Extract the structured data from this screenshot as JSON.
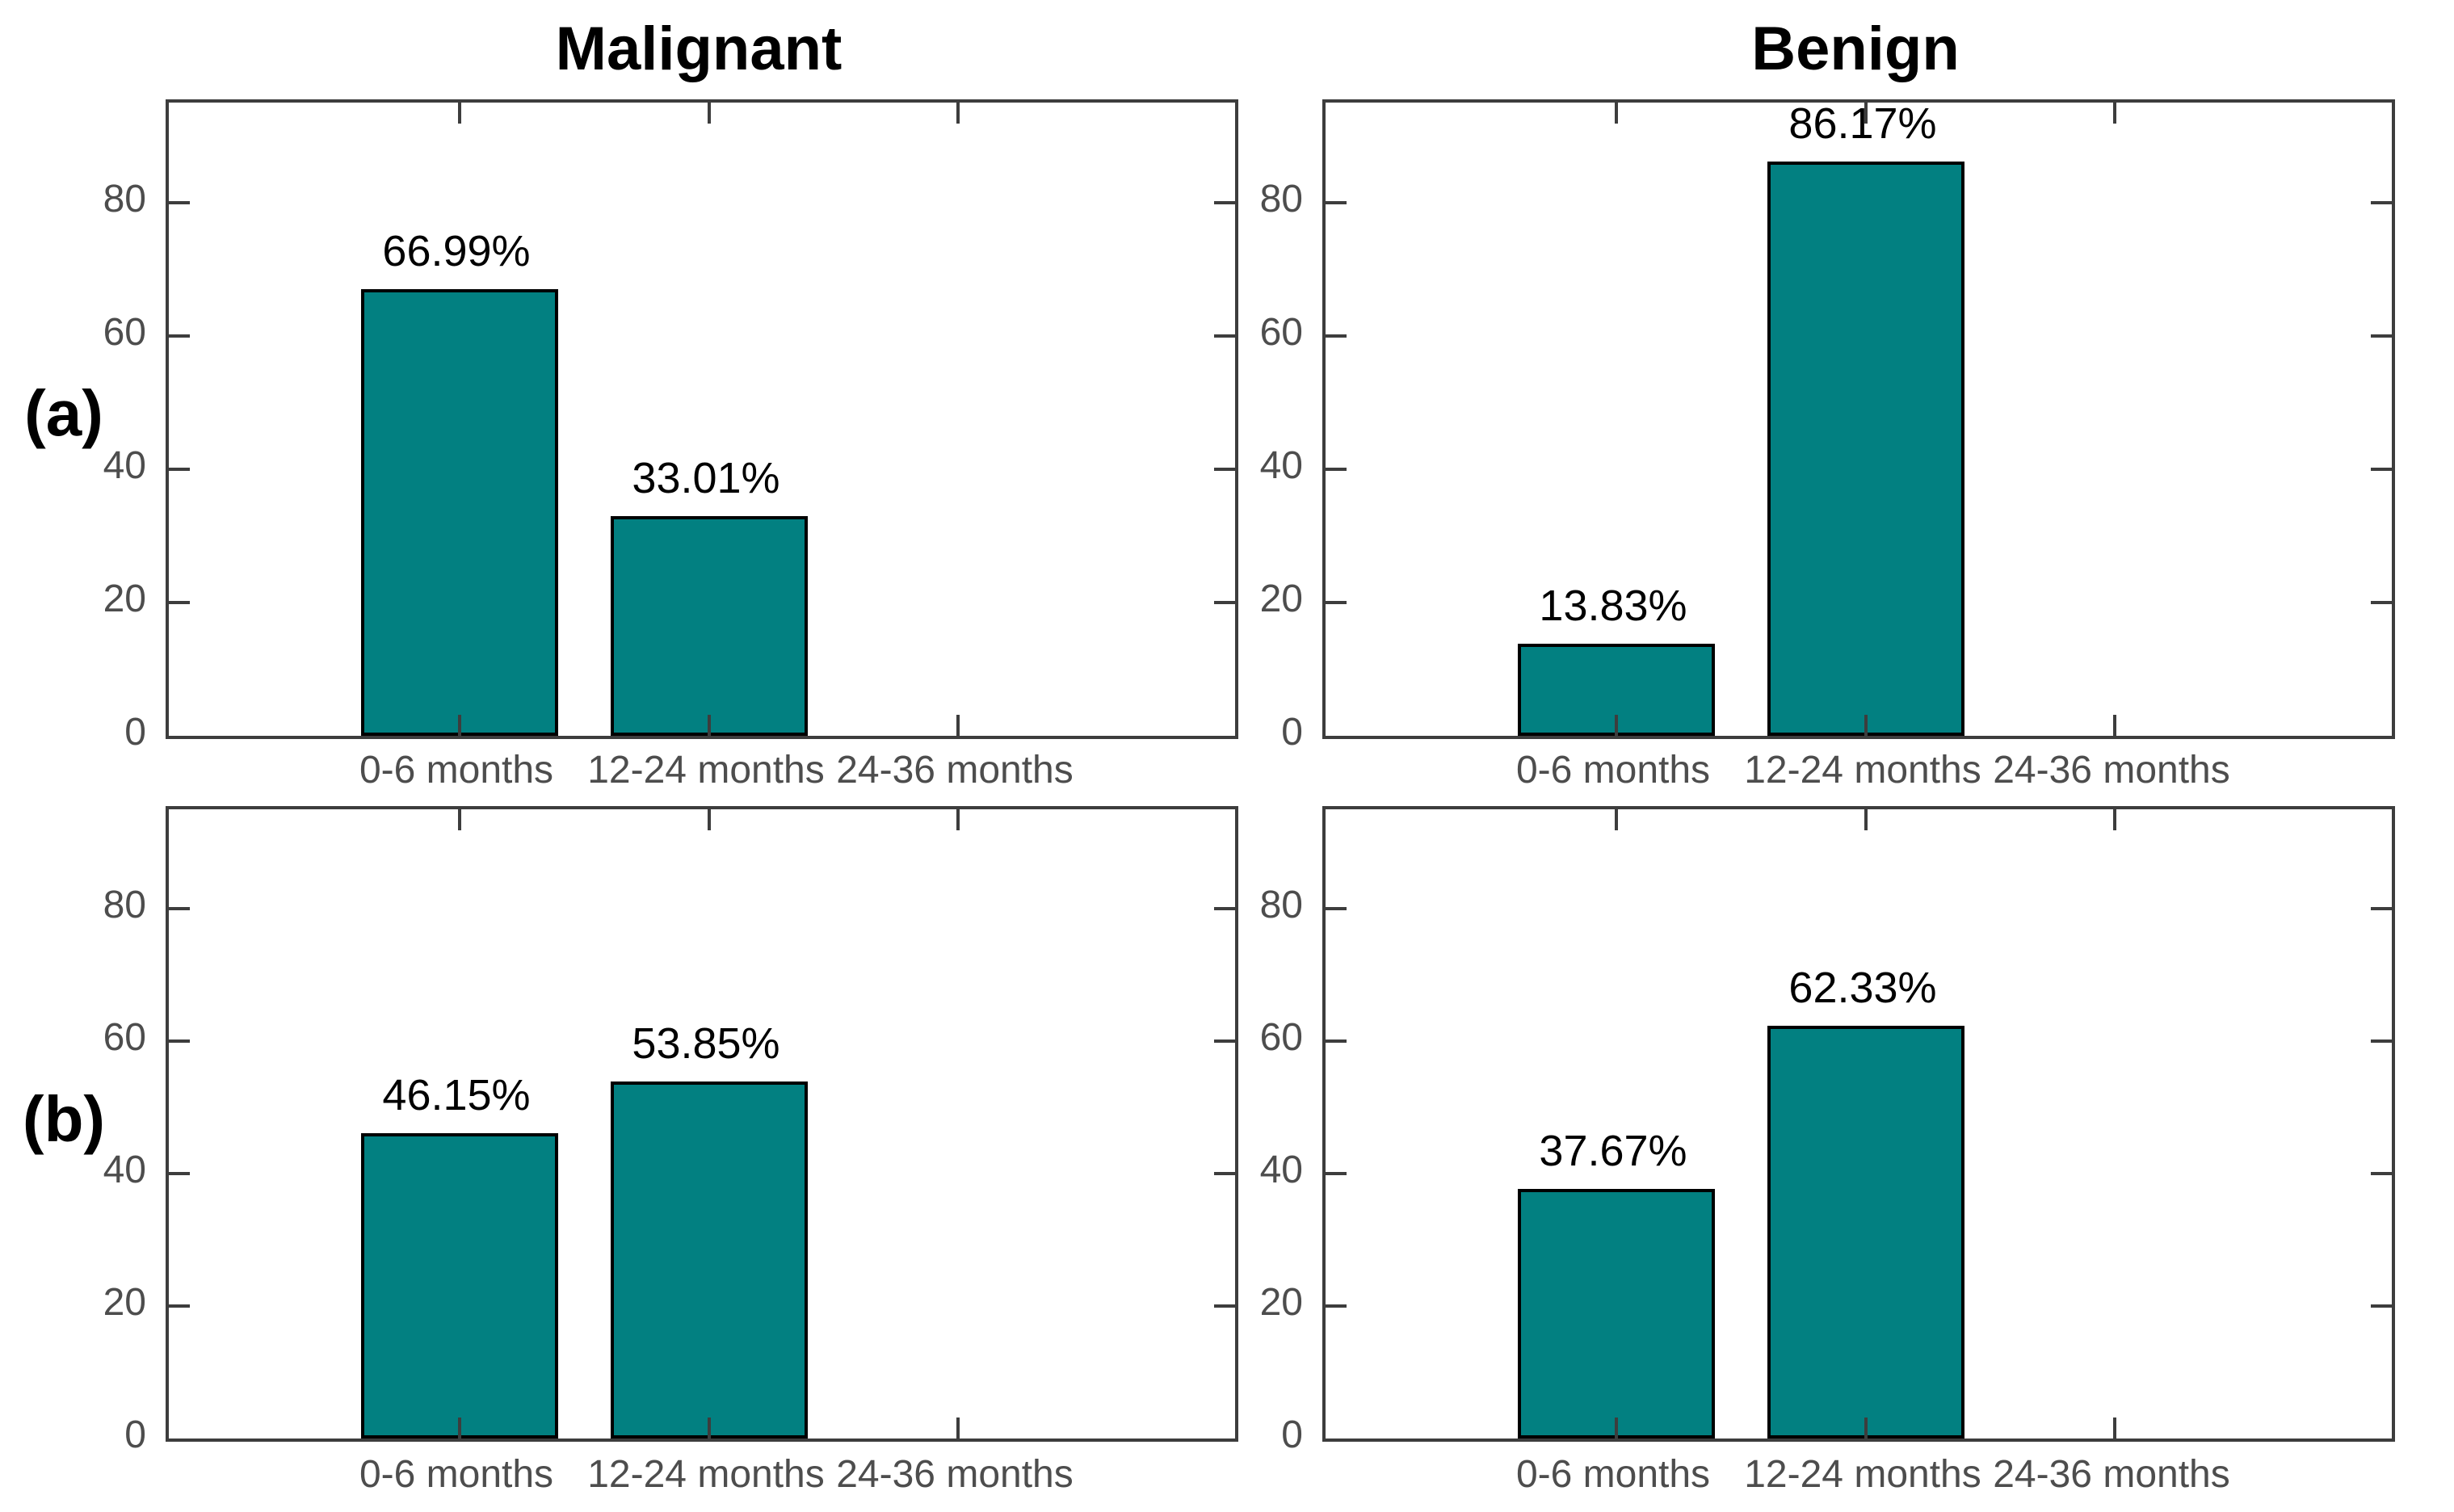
{
  "row_labels": [
    "(a)",
    "(b)"
  ],
  "categories": [
    "0-6 months",
    "12-24 months",
    "24-36 months"
  ],
  "y_tick_labels": [
    "0",
    "20",
    "40",
    "60",
    "80"
  ],
  "colors": {
    "bar_fill": "#028081",
    "bar_edge": "#000000",
    "axis": "#3d3d3d",
    "tick_label": "#4d4d4d",
    "value_label": "#000000",
    "title": "#000000",
    "background": "#ffffff"
  },
  "chart_data": [
    {
      "type": "bar",
      "position": "top-left",
      "row_label": "(a)",
      "title": "Malignant",
      "categories": [
        "0-6 months",
        "12-24 months",
        "24-36 months"
      ],
      "values": [
        66.99,
        33.01,
        null
      ],
      "value_labels": [
        "66.99%",
        "33.01%",
        ""
      ],
      "ylim": [
        0,
        95
      ],
      "y_ticks": [
        0,
        20,
        40,
        60,
        80
      ],
      "legend": "none",
      "grid": false
    },
    {
      "type": "bar",
      "position": "top-right",
      "row_label": "(a)",
      "title": "Benign",
      "categories": [
        "0-6 months",
        "12-24 months",
        "24-36 months"
      ],
      "values": [
        13.83,
        86.17,
        null
      ],
      "value_labels": [
        "13.83%",
        "86.17%",
        ""
      ],
      "ylim": [
        0,
        95
      ],
      "y_ticks": [
        0,
        20,
        40,
        60,
        80
      ],
      "legend": "none",
      "grid": false
    },
    {
      "type": "bar",
      "position": "bottom-left",
      "row_label": "(b)",
      "title": null,
      "categories": [
        "0-6 months",
        "12-24 months",
        "24-36 months"
      ],
      "values": [
        46.15,
        53.85,
        null
      ],
      "value_labels": [
        "46.15%",
        "53.85%",
        ""
      ],
      "ylim": [
        0,
        95
      ],
      "y_ticks": [
        0,
        20,
        40,
        60,
        80
      ],
      "legend": "none",
      "grid": false
    },
    {
      "type": "bar",
      "position": "bottom-right",
      "row_label": "(b)",
      "title": null,
      "categories": [
        "0-6 months",
        "12-24 months",
        "24-36 months"
      ],
      "values": [
        37.67,
        62.33,
        null
      ],
      "value_labels": [
        "37.67%",
        "62.33%",
        ""
      ],
      "ylim": [
        0,
        95
      ],
      "y_ticks": [
        0,
        20,
        40,
        60,
        80
      ],
      "legend": "none",
      "grid": false
    }
  ]
}
